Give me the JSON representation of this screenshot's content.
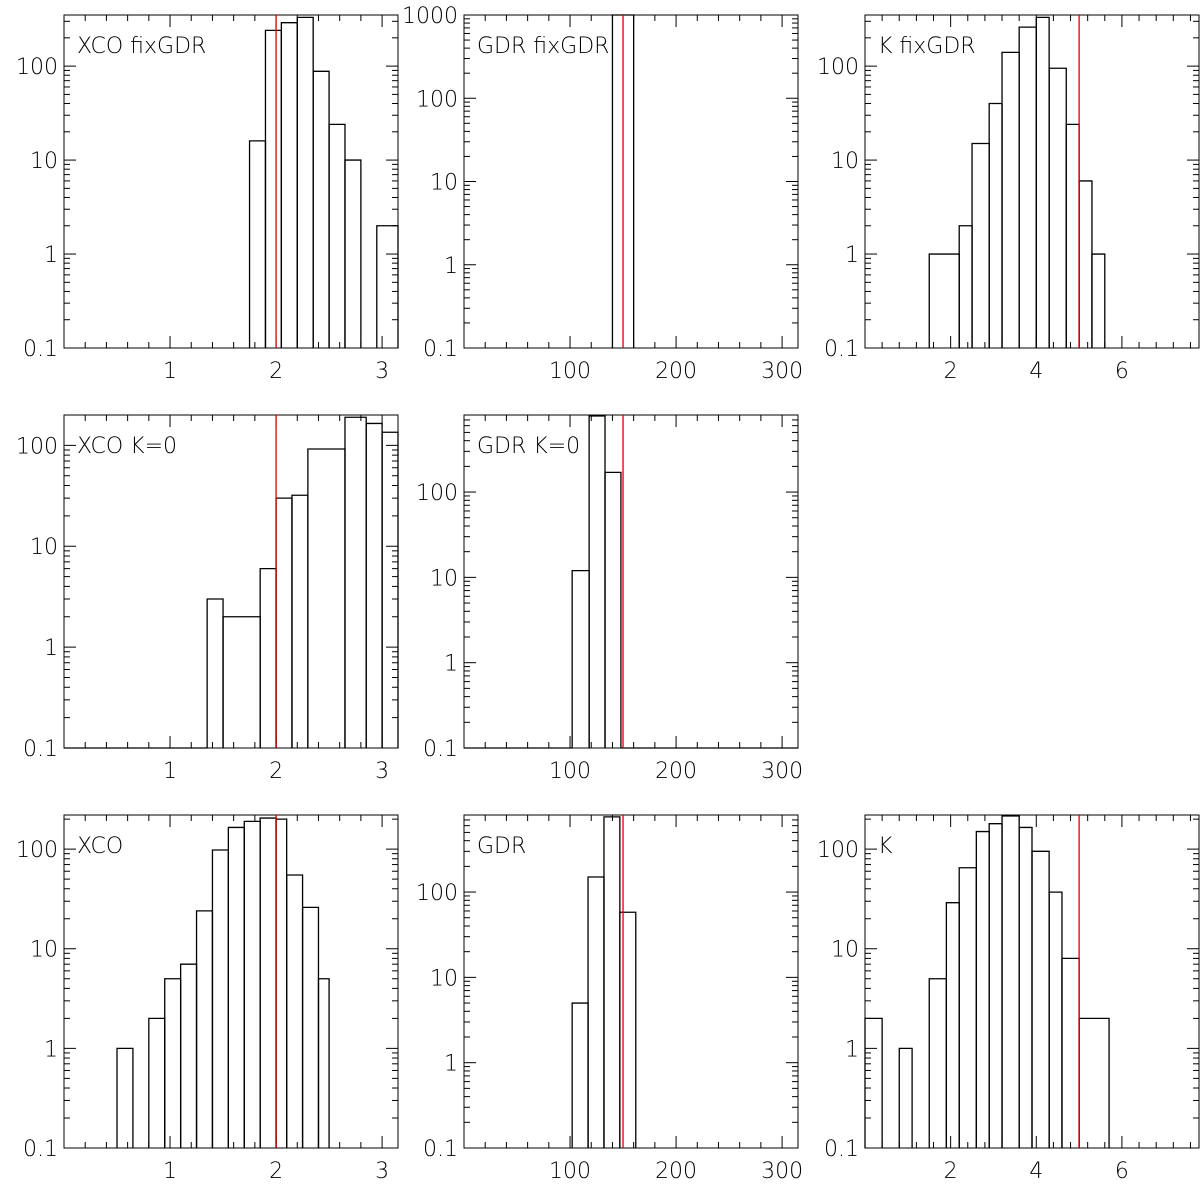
{
  "chart_data": [
    {
      "type": "histogram",
      "title": "XCO fixGDR",
      "x_scale": "linear",
      "y_scale": "log",
      "xlim": [
        0.0,
        3.15
      ],
      "ylim": [
        0.1,
        350
      ],
      "x_ticks": [
        1,
        2,
        3
      ],
      "x_tick_labels": [
        "1",
        "2",
        "3"
      ],
      "y_ticks": [
        0.1,
        1,
        10,
        100
      ],
      "y_tick_labels": [
        "0.1",
        "1",
        "10",
        "100"
      ],
      "bins": [
        [
          1.75,
          1.9,
          16
        ],
        [
          1.9,
          2.05,
          240
        ],
        [
          2.05,
          2.2,
          290
        ],
        [
          2.2,
          2.35,
          330
        ],
        [
          2.35,
          2.5,
          88
        ],
        [
          2.5,
          2.65,
          24
        ],
        [
          2.65,
          2.8,
          10
        ],
        [
          2.95,
          3.15,
          2
        ]
      ],
      "reference_line": {
        "x": 2,
        "color": "#e00000"
      }
    },
    {
      "type": "histogram",
      "title": "GDR fixGDR",
      "x_scale": "linear",
      "y_scale": "log",
      "xlim": [
        0,
        315
      ],
      "ylim": [
        0.1,
        1000
      ],
      "x_ticks": [
        100,
        200,
        300
      ],
      "x_tick_labels": [
        "100",
        "200",
        "300"
      ],
      "y_ticks": [
        0.1,
        1,
        10,
        100,
        1000
      ],
      "y_tick_labels": [
        "0.1",
        "1",
        "10",
        "100",
        "1000"
      ],
      "bins": [
        [
          140,
          160,
          1000
        ]
      ],
      "reference_line": {
        "x": 150,
        "color": "#e00000"
      }
    },
    {
      "type": "histogram",
      "title": "K fixGDR",
      "x_scale": "linear",
      "y_scale": "log",
      "xlim": [
        0,
        7.8
      ],
      "ylim": [
        0.1,
        350
      ],
      "x_ticks": [
        2,
        4,
        6
      ],
      "x_tick_labels": [
        "2",
        "4",
        "6"
      ],
      "y_ticks": [
        0.1,
        1,
        10,
        100
      ],
      "y_tick_labels": [
        "0.1",
        "1",
        "10",
        "100"
      ],
      "bins": [
        [
          1.5,
          2.2,
          1
        ],
        [
          2.2,
          2.5,
          2
        ],
        [
          2.5,
          2.9,
          15
        ],
        [
          2.9,
          3.2,
          40
        ],
        [
          3.2,
          3.6,
          140
        ],
        [
          3.6,
          4.0,
          260
        ],
        [
          4.0,
          4.3,
          330
        ],
        [
          4.3,
          4.7,
          95
        ],
        [
          4.7,
          5.0,
          24
        ],
        [
          5.0,
          5.3,
          6
        ],
        [
          5.3,
          5.6,
          1
        ]
      ],
      "reference_line": {
        "x": 5,
        "color": "#e00000"
      }
    },
    {
      "type": "histogram",
      "title": "XCO K=0",
      "x_scale": "linear",
      "y_scale": "log",
      "xlim": [
        0.0,
        3.15
      ],
      "ylim": [
        0.1,
        200
      ],
      "x_ticks": [
        1,
        2,
        3
      ],
      "x_tick_labels": [
        "1",
        "2",
        "3"
      ],
      "y_ticks": [
        0.1,
        1,
        10,
        100
      ],
      "y_tick_labels": [
        "0.1",
        "1",
        "10",
        "100"
      ],
      "bins": [
        [
          0.0,
          1.35,
          0.1
        ],
        [
          1.35,
          1.5,
          3
        ],
        [
          1.5,
          1.85,
          2
        ],
        [
          1.85,
          2.0,
          6
        ],
        [
          2.0,
          2.15,
          30
        ],
        [
          2.15,
          2.3,
          32
        ],
        [
          2.3,
          2.65,
          92
        ],
        [
          2.65,
          2.85,
          190
        ],
        [
          2.85,
          3.0,
          165
        ],
        [
          3.0,
          3.15,
          135
        ]
      ],
      "reference_line": {
        "x": 2,
        "color": "#e00000"
      }
    },
    {
      "type": "histogram",
      "title": "GDR K=0",
      "x_scale": "linear",
      "y_scale": "log",
      "xlim": [
        0,
        315
      ],
      "ylim": [
        0.1,
        800
      ],
      "x_ticks": [
        100,
        200,
        300
      ],
      "x_tick_labels": [
        "100",
        "200",
        "300"
      ],
      "y_ticks": [
        0.1,
        1,
        10,
        100
      ],
      "y_tick_labels": [
        "0.1",
        "1",
        "10",
        "100"
      ],
      "bins": [
        [
          0,
          102,
          0.1
        ],
        [
          102,
          118,
          12
        ],
        [
          118,
          133,
          780
        ],
        [
          133,
          148,
          170
        ],
        [
          148,
          315,
          0.1
        ]
      ],
      "reference_line": {
        "x": 150,
        "color": "#e00000"
      }
    },
    {
      "type": "histogram",
      "title": "XCO",
      "x_scale": "linear",
      "y_scale": "log",
      "xlim": [
        0.0,
        3.15
      ],
      "ylim": [
        0.1,
        220
      ],
      "x_ticks": [
        1,
        2,
        3
      ],
      "x_tick_labels": [
        "1",
        "2",
        "3"
      ],
      "y_ticks": [
        0.1,
        1,
        10,
        100
      ],
      "y_tick_labels": [
        "0.1",
        "1",
        "10",
        "100"
      ],
      "bins": [
        [
          0.5,
          0.65,
          1
        ],
        [
          0.8,
          0.95,
          2
        ],
        [
          0.95,
          1.1,
          5
        ],
        [
          1.1,
          1.25,
          7
        ],
        [
          1.25,
          1.4,
          24
        ],
        [
          1.4,
          1.55,
          98
        ],
        [
          1.55,
          1.7,
          165
        ],
        [
          1.7,
          1.85,
          190
        ],
        [
          1.85,
          2.0,
          205
        ],
        [
          2.0,
          2.1,
          200
        ],
        [
          2.1,
          2.25,
          55
        ],
        [
          2.25,
          2.4,
          26
        ],
        [
          2.4,
          2.5,
          5
        ]
      ],
      "reference_line": {
        "x": 2,
        "color": "#e00000"
      }
    },
    {
      "type": "histogram",
      "title": "GDR",
      "x_scale": "linear",
      "y_scale": "log",
      "xlim": [
        0,
        315
      ],
      "ylim": [
        0.1,
        800
      ],
      "x_ticks": [
        100,
        200,
        300
      ],
      "x_tick_labels": [
        "100",
        "200",
        "300"
      ],
      "y_ticks": [
        0.1,
        1,
        10,
        100
      ],
      "y_tick_labels": [
        "0.1",
        "1",
        "10",
        "100"
      ],
      "bins": [
        [
          102,
          117,
          5
        ],
        [
          117,
          132,
          150
        ],
        [
          132,
          147,
          760
        ],
        [
          147,
          162,
          58
        ]
      ],
      "reference_line": {
        "x": 150,
        "color": "#e00000"
      }
    },
    {
      "type": "histogram",
      "title": "K",
      "x_scale": "linear",
      "y_scale": "log",
      "xlim": [
        0,
        7.8
      ],
      "ylim": [
        0.1,
        220
      ],
      "x_ticks": [
        2,
        4,
        6
      ],
      "x_tick_labels": [
        "2",
        "4",
        "6"
      ],
      "y_ticks": [
        0.1,
        1,
        10,
        100
      ],
      "y_tick_labels": [
        "0.1",
        "1",
        "10",
        "100"
      ],
      "bins": [
        [
          0.0,
          0.4,
          2
        ],
        [
          0.8,
          1.1,
          1
        ],
        [
          1.5,
          1.9,
          5
        ],
        [
          1.9,
          2.2,
          29
        ],
        [
          2.2,
          2.6,
          65
        ],
        [
          2.6,
          2.9,
          150
        ],
        [
          2.9,
          3.2,
          180
        ],
        [
          3.2,
          3.6,
          215
        ],
        [
          3.6,
          3.9,
          165
        ],
        [
          3.9,
          4.3,
          95
        ],
        [
          4.3,
          4.6,
          37
        ],
        [
          4.6,
          5.0,
          8
        ],
        [
          5.0,
          5.7,
          2
        ]
      ],
      "reference_line": {
        "x": 5,
        "color": "#e00000"
      }
    }
  ]
}
